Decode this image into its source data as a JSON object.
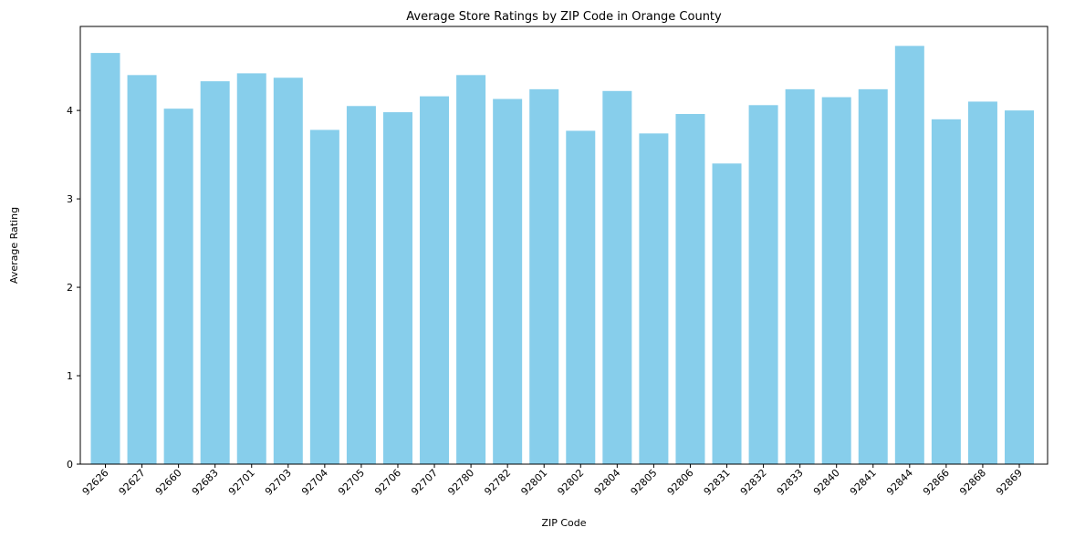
{
  "chart_data": {
    "type": "bar",
    "title": "Average Store Ratings by ZIP Code in Orange County",
    "xlabel": "ZIP Code",
    "ylabel": "Average Rating",
    "ylim": [
      0,
      4.95
    ],
    "yticks": [
      0,
      1,
      2,
      3,
      4
    ],
    "grid": false,
    "bar_color": "#87ceeb",
    "categories": [
      "92626",
      "92627",
      "92660",
      "92683",
      "92701",
      "92703",
      "92704",
      "92705",
      "92706",
      "92707",
      "92780",
      "92782",
      "92801",
      "92802",
      "92804",
      "92805",
      "92806",
      "92831",
      "92832",
      "92833",
      "92840",
      "92841",
      "92844",
      "92866",
      "92868",
      "92869"
    ],
    "values": [
      4.65,
      4.4,
      4.02,
      4.33,
      4.42,
      4.37,
      3.78,
      4.05,
      3.98,
      4.16,
      4.4,
      4.13,
      4.24,
      3.77,
      4.22,
      3.74,
      3.96,
      3.4,
      4.06,
      4.24,
      4.15,
      4.24,
      4.73,
      3.9,
      4.1,
      4.0
    ]
  }
}
